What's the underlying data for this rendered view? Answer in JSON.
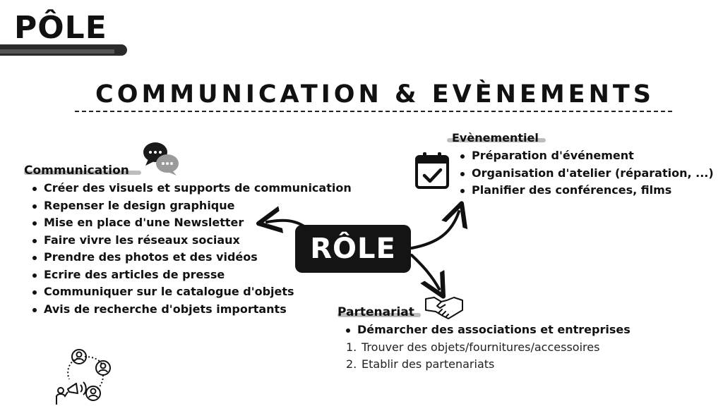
{
  "header": {
    "pole_title": "PÔLE",
    "main_title": "COMMUNICATION & EVÈNEMENTS"
  },
  "center": {
    "label": "RÔLE"
  },
  "communication": {
    "heading": "Communication",
    "items": [
      "Créer des visuels et supports de communication",
      "Repenser le design graphique",
      "Mise en place d'une Newsletter",
      "Faire vivre les réseaux sociaux",
      "Prendre des photos et des vidéos",
      "Ecrire des articles de presse",
      "Communiquer sur le catalogue d'objets",
      "Avis de recherche d'objets importants"
    ]
  },
  "evenementiel": {
    "heading": "Evènementiel",
    "items": [
      "Préparation d'événement",
      "Organisation d'atelier (réparation, ...)",
      "Planifier des conférences, films"
    ]
  },
  "partenariat": {
    "heading": "Partenariat",
    "bullet": "Démarcher des associations et entreprises",
    "numbered": [
      {
        "num": "1.",
        "text": "Trouver des objets/fournitures/accessoires"
      },
      {
        "num": "2.",
        "text": "Etablir des partenariats"
      }
    ]
  },
  "icons": [
    "chat-bubbles-icon",
    "calendar-check-icon",
    "handshake-icon",
    "network-megaphone-icon"
  ],
  "colors": {
    "ink": "#111111",
    "highlight": "#bdbdbd",
    "bubble": "#141414"
  }
}
